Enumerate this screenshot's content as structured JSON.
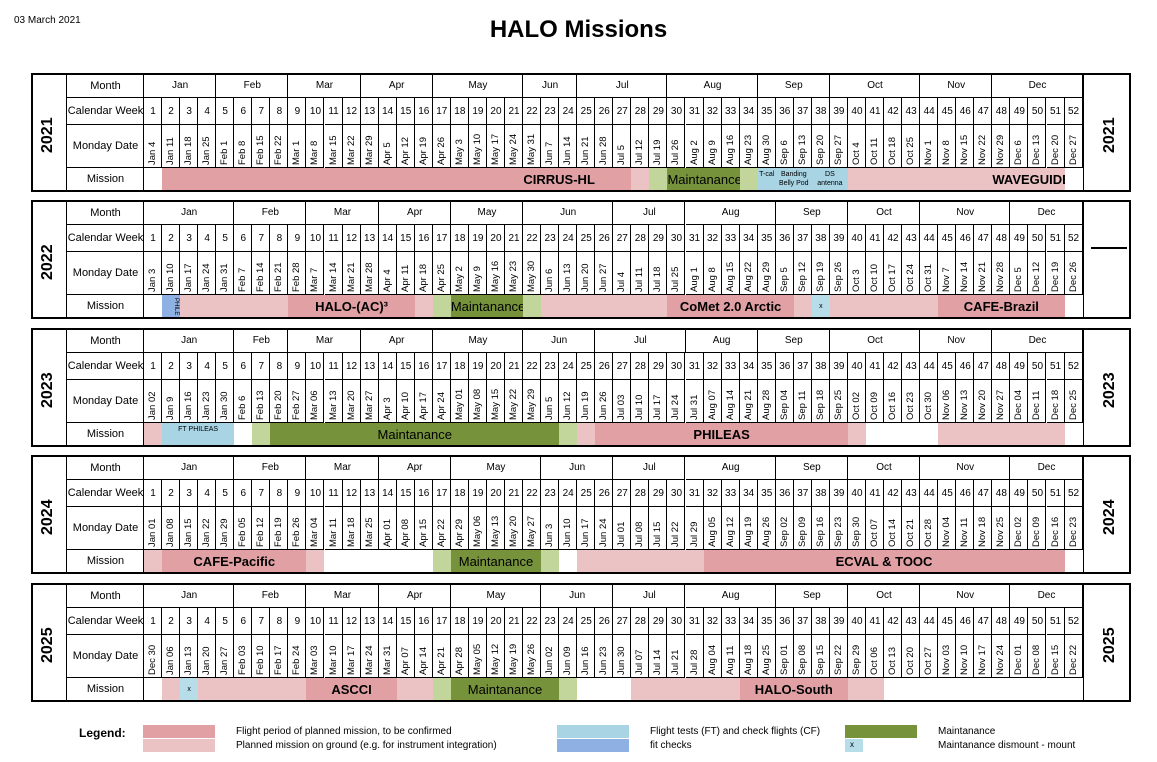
{
  "header": {
    "date": "03 March 2021",
    "title": "HALO Missions"
  },
  "row_labels": {
    "month": "Month",
    "week": "Calendar Week",
    "monday": "Monday Date",
    "mission": "Mission"
  },
  "colors": {
    "flight": "#e0a0a4",
    "ground": "#ecc3c5",
    "ft": "#a8d4e4",
    "fitcheck": "#8fb0e2",
    "maint": "#76933c",
    "maint_light": "#c2d69b",
    "dismount": "#b7dde8"
  },
  "years": [
    {
      "year": "2021",
      "months": [
        {
          "name": "Jan",
          "start": 1,
          "end": 4
        },
        {
          "name": "Feb",
          "start": 5,
          "end": 8
        },
        {
          "name": "Mar",
          "start": 9,
          "end": 12
        },
        {
          "name": "Apr",
          "start": 13,
          "end": 16
        },
        {
          "name": "May",
          "start": 17,
          "end": 21
        },
        {
          "name": "Jun",
          "start": 22,
          "end": 24
        },
        {
          "name": "Jul",
          "start": 25,
          "end": 29
        },
        {
          "name": "Aug",
          "start": 30,
          "end": 34
        },
        {
          "name": "Sep",
          "start": 35,
          "end": 38
        },
        {
          "name": "Oct",
          "start": 39,
          "end": 43
        },
        {
          "name": "Nov",
          "start": 44,
          "end": 47
        },
        {
          "name": "Dec",
          "start": 48,
          "end": 52
        }
      ],
      "mondays": [
        "Jan 4",
        "Jan 11",
        "Jan 18",
        "Jan 25",
        "Feb 1",
        "Feb 8",
        "Feb 15",
        "Feb 22",
        "Mar 1",
        "Mar 8",
        "Mar 15",
        "Mar 22",
        "Mar 29",
        "Apr 5",
        "Apr 12",
        "Apr 19",
        "Apr 26",
        "May 3",
        "May 10",
        "May 17",
        "May 24",
        "May 31",
        "Jun 7",
        "Jun 14",
        "Jun 21",
        "Jun 28",
        "Jul 5",
        "Jul 12",
        "Jul 19",
        "Jul 26",
        "Aug 2",
        "Aug 9",
        "Aug 16",
        "Aug 23",
        "Aug 30",
        "Sep 6",
        "Sep 13",
        "Sep 20",
        "Sep 27",
        "Oct 4",
        "Oct 11",
        "Oct 18",
        "Oct 25",
        "Nov 1",
        "Nov 8",
        "Nov 15",
        "Nov 22",
        "Nov 29",
        "Dec 6",
        "Dec 13",
        "Dec 20",
        "Dec 27"
      ],
      "bars": [
        {
          "start": 2,
          "end": 27,
          "color": "flight",
          "label": ""
        },
        {
          "start": 21,
          "end": 26,
          "color": "flight",
          "label": "CIRRUS-HL"
        },
        {
          "start": 28,
          "end": 28,
          "color": "ground",
          "label": ""
        },
        {
          "start": 29,
          "end": 29,
          "color": "maint_light",
          "label": ""
        },
        {
          "start": 30,
          "end": 33,
          "color": "maint",
          "label": "Maintanance"
        },
        {
          "start": 34,
          "end": 34,
          "color": "maint_light",
          "label": ""
        },
        {
          "start": 35,
          "end": 35,
          "color": "ft",
          "label": "T-cal",
          "small": true
        },
        {
          "start": 36,
          "end": 37,
          "color": "ft",
          "label": "Banding Belly Pod",
          "small": true
        },
        {
          "start": 38,
          "end": 39,
          "color": "ft",
          "label": "DS antenna",
          "small": true
        },
        {
          "start": 40,
          "end": 51,
          "color": "ground",
          "label": ""
        },
        {
          "start": 48,
          "end": 51,
          "color": "ground",
          "label": "WAVEGUIDE"
        }
      ]
    },
    {
      "year": "2022",
      "months": [
        {
          "name": "Jan",
          "start": 1,
          "end": 5
        },
        {
          "name": "Feb",
          "start": 6,
          "end": 9
        },
        {
          "name": "Mar",
          "start": 10,
          "end": 13
        },
        {
          "name": "Apr",
          "start": 14,
          "end": 17
        },
        {
          "name": "May",
          "start": 18,
          "end": 21
        },
        {
          "name": "Jun",
          "start": 22,
          "end": 26
        },
        {
          "name": "Jul",
          "start": 27,
          "end": 30
        },
        {
          "name": "Aug",
          "start": 31,
          "end": 35
        },
        {
          "name": "Sep",
          "start": 36,
          "end": 39
        },
        {
          "name": "Oct",
          "start": 40,
          "end": 43
        },
        {
          "name": "Nov",
          "start": 44,
          "end": 48
        },
        {
          "name": "Dec",
          "start": 49,
          "end": 52
        }
      ],
      "mondays": [
        "Jan 3",
        "Jan 10",
        "Jan 17",
        "Jan 24",
        "Jan 31",
        "Feb 7",
        "Feb 14",
        "Feb 21",
        "Feb 28",
        "Mar 7",
        "Mar 14",
        "Mar 21",
        "Mar 28",
        "Apr 4",
        "Apr 11",
        "Apr 18",
        "Apr 25",
        "May 2",
        "May 9",
        "May 16",
        "May 23",
        "May 30",
        "Jun 6",
        "Jun 13",
        "Jun 20",
        "Jun 27",
        "Jul 4",
        "Jul 11",
        "Jul 18",
        "Jul 25",
        "Aug 1",
        "Aug 8",
        "Aug 15",
        "Aug 22",
        "Aug 29",
        "Sep 5",
        "Sep 12",
        "Sep 19",
        "Sep 26",
        "Oct 3",
        "Oct 10",
        "Oct 17",
        "Oct 24",
        "Oct 31",
        "Nov 7",
        "Nov 14",
        "Nov 21",
        "Nov 28",
        "Dec 5",
        "Dec 12",
        "Dec 19",
        "Dec 26"
      ],
      "bars": [
        {
          "start": 2,
          "end": 2,
          "color": "fitcheck",
          "label": "PHILE",
          "small": true
        },
        {
          "start": 3,
          "end": 16,
          "color": "ground",
          "label": ""
        },
        {
          "start": 9,
          "end": 15,
          "color": "flight",
          "label": "HALO-(AC)³"
        },
        {
          "start": 17,
          "end": 17,
          "color": "maint_light",
          "label": ""
        },
        {
          "start": 18,
          "end": 21,
          "color": "maint",
          "label": "Maintanance"
        },
        {
          "start": 22,
          "end": 22,
          "color": "maint_light",
          "label": ""
        },
        {
          "start": 23,
          "end": 37,
          "color": "ground",
          "label": ""
        },
        {
          "start": 30,
          "end": 36,
          "color": "flight",
          "label": "CoMet 2.0 Arctic"
        },
        {
          "start": 38,
          "end": 38,
          "color": "dismount",
          "label": "x",
          "small": true
        },
        {
          "start": 39,
          "end": 51,
          "color": "ground",
          "label": ""
        },
        {
          "start": 45,
          "end": 51,
          "color": "flight",
          "label": "CAFE-Brazil"
        }
      ]
    },
    {
      "year": "2023",
      "months": [
        {
          "name": "Jan",
          "start": 1,
          "end": 5
        },
        {
          "name": "Feb",
          "start": 6,
          "end": 8
        },
        {
          "name": "Mar",
          "start": 9,
          "end": 12
        },
        {
          "name": "Apr",
          "start": 13,
          "end": 16
        },
        {
          "name": "May",
          "start": 17,
          "end": 21
        },
        {
          "name": "Jun",
          "start": 22,
          "end": 25
        },
        {
          "name": "Jul",
          "start": 26,
          "end": 30
        },
        {
          "name": "Aug",
          "start": 31,
          "end": 34
        },
        {
          "name": "Sep",
          "start": 35,
          "end": 38
        },
        {
          "name": "Oct",
          "start": 39,
          "end": 43
        },
        {
          "name": "Nov",
          "start": 44,
          "end": 47
        },
        {
          "name": "Dec",
          "start": 48,
          "end": 52
        }
      ],
      "mondays": [
        "Jan 02",
        "Jan 9",
        "Jan 16",
        "Jan 23",
        "Jan 30",
        "Feb 6",
        "Feb 13",
        "Feb 20",
        "Feb 27",
        "Mar 06",
        "Mar 13",
        "Mar 20",
        "Mar 27",
        "Apr 3",
        "Apr 10",
        "Apr 17",
        "Apr 24",
        "May 01",
        "May 08",
        "May 15",
        "May 22",
        "May 29",
        "Jun 5",
        "Jun 12",
        "Jun 19",
        "Jun 26",
        "Jul 03",
        "Jul 10",
        "Jul 17",
        "Jul 24",
        "Jul 31",
        "Aug 07",
        "Aug 14",
        "Aug 21",
        "Aug 28",
        "Sep 04",
        "Sep 11",
        "Sep 18",
        "Sep 25",
        "Oct 02",
        "Oct 09",
        "Oct 16",
        "Oct 23",
        "Oct 30",
        "Nov 06",
        "Nov 13",
        "Nov 20",
        "Nov 27",
        "Dec 04",
        "Dec 11",
        "Dec 18",
        "Dec 25"
      ],
      "bars": [
        {
          "start": 1,
          "end": 1,
          "color": "ground",
          "label": ""
        },
        {
          "start": 2,
          "end": 5,
          "color": "ft",
          "label": "FT PHILEAS",
          "small": true
        },
        {
          "start": 7,
          "end": 7,
          "color": "maint_light",
          "label": ""
        },
        {
          "start": 8,
          "end": 23,
          "color": "maint",
          "label": "Maintanance"
        },
        {
          "start": 24,
          "end": 24,
          "color": "maint_light",
          "label": ""
        },
        {
          "start": 25,
          "end": 40,
          "color": "ground",
          "label": ""
        },
        {
          "start": 26,
          "end": 39,
          "color": "flight",
          "label": "PHILEAS"
        },
        {
          "start": 45,
          "end": 51,
          "color": "ground",
          "label": ""
        }
      ]
    },
    {
      "year": "2024",
      "months": [
        {
          "name": "Jan",
          "start": 1,
          "end": 5
        },
        {
          "name": "Feb",
          "start": 6,
          "end": 9
        },
        {
          "name": "Mar",
          "start": 10,
          "end": 13
        },
        {
          "name": "Apr",
          "start": 14,
          "end": 17
        },
        {
          "name": "May",
          "start": 18,
          "end": 22
        },
        {
          "name": "Jun",
          "start": 23,
          "end": 26
        },
        {
          "name": "Jul",
          "start": 27,
          "end": 30
        },
        {
          "name": "Aug",
          "start": 31,
          "end": 35
        },
        {
          "name": "Sep",
          "start": 36,
          "end": 39
        },
        {
          "name": "Oct",
          "start": 40,
          "end": 43
        },
        {
          "name": "Nov",
          "start": 44,
          "end": 48
        },
        {
          "name": "Dec",
          "start": 49,
          "end": 52
        }
      ],
      "mondays": [
        "Jan 01",
        "Jan 08",
        "Jan 15",
        "Jan 22",
        "Jan 29",
        "Feb 05",
        "Feb 12",
        "Feb 19",
        "Feb 26",
        "Mar 04",
        "Mar 11",
        "Mar 18",
        "Mar 25",
        "Apr 01",
        "Apr 08",
        "Apr 15",
        "Apr 22",
        "Apr 29",
        "May 06",
        "May 13",
        "May 20",
        "May 27",
        "Jun 3",
        "Jun 10",
        "Jun 17",
        "Jun 24",
        "Jul 01",
        "Jul 08",
        "Jul 15",
        "Jul 22",
        "Jul 29",
        "Aug 05",
        "Aug 12",
        "Aug 19",
        "Aug 26",
        "Sep 02",
        "Sep 09",
        "Sep 16",
        "Sep 23",
        "Sep 30",
        "Oct 07",
        "Oct 14",
        "Oct 21",
        "Oct 28",
        "Nov 04",
        "Nov 11",
        "Nov 18",
        "Nov 25",
        "Dec 02",
        "Dec 09",
        "Dec 16",
        "Dec 23"
      ],
      "bars": [
        {
          "start": 1,
          "end": 1,
          "color": "ground",
          "label": ""
        },
        {
          "start": 2,
          "end": 9,
          "color": "flight",
          "label": "CAFE-Pacific"
        },
        {
          "start": 10,
          "end": 10,
          "color": "ground",
          "label": ""
        },
        {
          "start": 17,
          "end": 17,
          "color": "maint_light",
          "label": ""
        },
        {
          "start": 18,
          "end": 22,
          "color": "maint",
          "label": "Maintanance"
        },
        {
          "start": 23,
          "end": 23,
          "color": "maint_light",
          "label": ""
        },
        {
          "start": 25,
          "end": 51,
          "color": "ground",
          "label": ""
        },
        {
          "start": 32,
          "end": 51,
          "color": "flight",
          "label": "ECVAL & TOOC"
        }
      ]
    },
    {
      "year": "2025",
      "months": [
        {
          "name": "Jan",
          "start": 1,
          "end": 5
        },
        {
          "name": "Feb",
          "start": 6,
          "end": 9
        },
        {
          "name": "Mar",
          "start": 10,
          "end": 13
        },
        {
          "name": "Apr",
          "start": 14,
          "end": 17
        },
        {
          "name": "May",
          "start": 18,
          "end": 22
        },
        {
          "name": "Jun",
          "start": 23,
          "end": 26
        },
        {
          "name": "Jul",
          "start": 27,
          "end": 30
        },
        {
          "name": "Aug",
          "start": 31,
          "end": 35
        },
        {
          "name": "Sep",
          "start": 36,
          "end": 39
        },
        {
          "name": "Oct",
          "start": 40,
          "end": 43
        },
        {
          "name": "Nov",
          "start": 44,
          "end": 48
        },
        {
          "name": "Dec",
          "start": 49,
          "end": 52
        }
      ],
      "mondays": [
        "Dec 30",
        "Jan 06",
        "Jan 13",
        "Jan 20",
        "Jan 27",
        "Feb 03",
        "Feb 10",
        "Feb 17",
        "Feb 24",
        "Mar 03",
        "Mar 10",
        "Mar 17",
        "Mar 24",
        "Mar 31",
        "Apr 07",
        "Apr 14",
        "Apr 21",
        "Apr 28",
        "May 05",
        "May 12",
        "May 19",
        "May 26",
        "Jun 02",
        "Jun 09",
        "Jun 16",
        "Jun 23",
        "Jun 30",
        "Jul 07",
        "Jul 14",
        "Jul 21",
        "Jul 28",
        "Aug 04",
        "Aug 11",
        "Aug 18",
        "Aug 25",
        "Sep 01",
        "Sep 08",
        "Sep 15",
        "Sep 22",
        "Sep 29",
        "Oct 06",
        "Oct 13",
        "Oct 20",
        "Oct 27",
        "Nov 03",
        "Nov 10",
        "Nov 17",
        "Nov 24",
        "Dec 01",
        "Dec 08",
        "Dec 15",
        "Dec 22"
      ],
      "bars": [
        {
          "start": 2,
          "end": 2,
          "color": "ground",
          "label": ""
        },
        {
          "start": 3,
          "end": 3,
          "color": "dismount",
          "label": "x",
          "small": true
        },
        {
          "start": 4,
          "end": 16,
          "color": "ground",
          "label": ""
        },
        {
          "start": 10,
          "end": 14,
          "color": "flight",
          "label": "ASCCI"
        },
        {
          "start": 17,
          "end": 17,
          "color": "maint_light",
          "label": ""
        },
        {
          "start": 18,
          "end": 23,
          "color": "maint",
          "label": "Maintanance"
        },
        {
          "start": 24,
          "end": 24,
          "color": "maint_light",
          "label": ""
        },
        {
          "start": 28,
          "end": 41,
          "color": "ground",
          "label": ""
        },
        {
          "start": 34,
          "end": 39,
          "color": "flight",
          "label": "HALO-South"
        }
      ]
    }
  ],
  "legend": {
    "title": "Legend:",
    "flight_label": "Flight period of planned mission, to be confirmed",
    "ground_label": "Planned mission on ground (e.g. for instrument integration)",
    "ft_label": "Flight tests (FT) and check flights (CF)",
    "fitcheck_label": "fit checks",
    "maint_label": "Maintanance",
    "dismount_label": "Maintanance dismount - mount",
    "dismount_symbol": "x"
  }
}
